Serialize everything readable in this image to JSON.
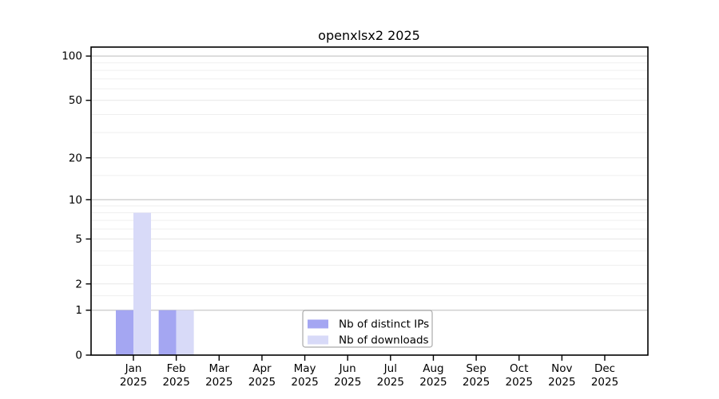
{
  "chart_data": {
    "type": "bar",
    "title": "openxlsx2 2025",
    "categories": [
      "Jan",
      "Feb",
      "Mar",
      "Apr",
      "May",
      "Jun",
      "Jul",
      "Aug",
      "Sep",
      "Oct",
      "Nov",
      "Dec"
    ],
    "x_year_label": "2025",
    "series": [
      {
        "name": "Nb of distinct IPs",
        "color": "#a4a6f2",
        "values": [
          1,
          1,
          0,
          0,
          0,
          0,
          0,
          0,
          0,
          0,
          0,
          0
        ]
      },
      {
        "name": "Nb of downloads",
        "color": "#d8daf8",
        "values": [
          8,
          1,
          0,
          0,
          0,
          0,
          0,
          0,
          0,
          0,
          0,
          0
        ]
      }
    ],
    "y_axis": {
      "scale": "log1p",
      "tick_values": [
        0,
        1,
        2,
        5,
        10,
        20,
        50,
        100
      ],
      "minor_gridlines": [
        1.5,
        3,
        4,
        6,
        7,
        8,
        9,
        15,
        30,
        40,
        60,
        70,
        80,
        90
      ],
      "emphasized_gridlines": [
        1,
        10,
        100
      ],
      "ylim": [
        0,
        115
      ]
    },
    "legend": {
      "position": "bottom-center-inside"
    },
    "grid": "horizontal",
    "colors": {
      "grid_minor": "#efefef",
      "grid_major": "#e7e7e7",
      "grid_power": "#c9c9c9",
      "frame": "#000000",
      "text": "#000000",
      "legend_border": "#ababab",
      "legend_background": "#ffffff",
      "background": "#ffffff"
    }
  }
}
